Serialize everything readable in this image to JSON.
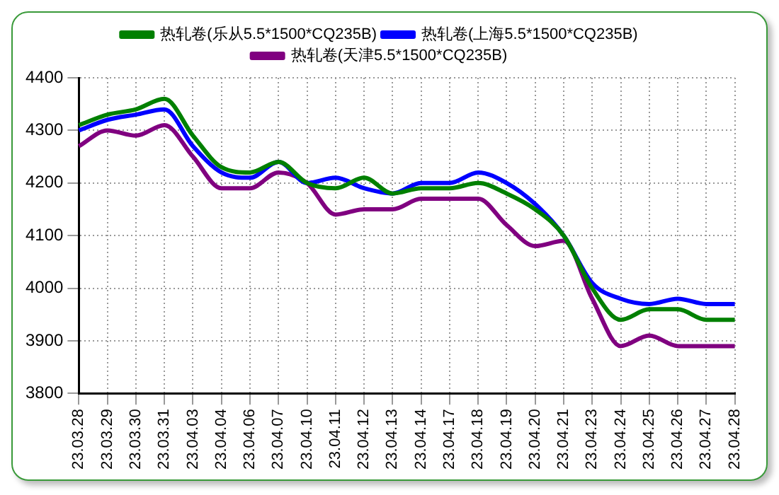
{
  "chart_data": {
    "type": "line",
    "categories": [
      "23.03.28",
      "23.03.29",
      "23.03.30",
      "23.03.31",
      "23.04.03",
      "23.04.04",
      "23.04.06",
      "23.04.07",
      "23.04.10",
      "23.04.11",
      "23.04.12",
      "23.04.13",
      "23.04.14",
      "23.04.17",
      "23.04.18",
      "23.04.19",
      "23.04.20",
      "23.04.21",
      "23.04.23",
      "23.04.24",
      "23.04.25",
      "23.04.26",
      "23.04.27",
      "23.04.28"
    ],
    "series": [
      {
        "name": "热轧卷(乐从5.5*1500*CQ235B)",
        "color": "#008000",
        "values": [
          4310,
          4330,
          4340,
          4360,
          4290,
          4230,
          4220,
          4240,
          4200,
          4190,
          4210,
          4180,
          4190,
          4190,
          4200,
          4180,
          4150,
          4100,
          4000,
          3940,
          3960,
          3960,
          3940,
          3940
        ]
      },
      {
        "name": "热轧卷(上海5.5*1500*CQ235B)",
        "color": "#0000ff",
        "values": [
          4300,
          4320,
          4330,
          4340,
          4270,
          4220,
          4210,
          4240,
          4200,
          4210,
          4190,
          4180,
          4200,
          4200,
          4220,
          4200,
          4160,
          4100,
          4010,
          3980,
          3970,
          3980,
          3970,
          3970
        ]
      },
      {
        "name": "热轧卷(天津5.5*1500*CQ235B)",
        "color": "#800080",
        "values": [
          4270,
          4300,
          4290,
          4310,
          4250,
          4190,
          4190,
          4220,
          4200,
          4140,
          4150,
          4150,
          4170,
          4170,
          4170,
          4120,
          4080,
          4090,
          3980,
          3890,
          3910,
          3890,
          3890,
          3890
        ]
      }
    ],
    "ylim": [
      3800,
      4400
    ],
    "yticks": [
      3800,
      3900,
      4000,
      4100,
      4200,
      4300,
      4400
    ],
    "grid": true,
    "legend": "top",
    "marker": "none",
    "line_style": "solid"
  }
}
